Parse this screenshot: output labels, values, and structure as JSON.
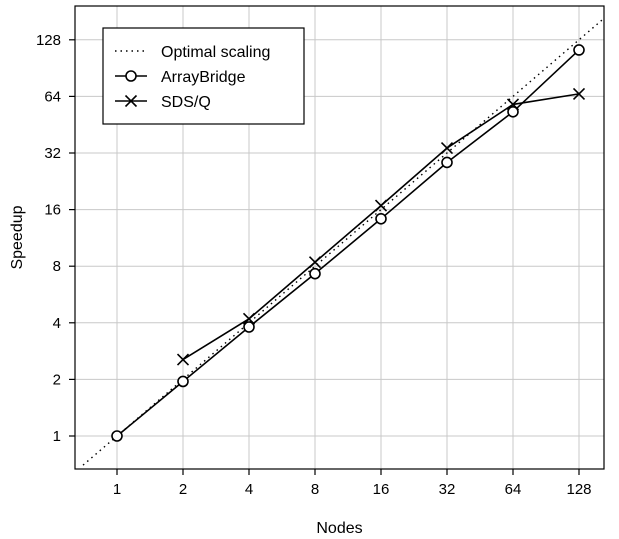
{
  "chart_data": {
    "type": "line",
    "title": "",
    "xlabel": "Nodes",
    "ylabel": "Speedup",
    "x_scale": "log2",
    "y_scale": "log2",
    "x": [
      1,
      2,
      4,
      8,
      16,
      32,
      64,
      128
    ],
    "x_tick_labels": [
      "1",
      "2",
      "4",
      "8",
      "16",
      "32",
      "64",
      "128"
    ],
    "y_tick_labels": [
      "1",
      "2",
      "4",
      "8",
      "16",
      "32",
      "64",
      "128"
    ],
    "grid": true,
    "legend_position": "top-left",
    "series": [
      {
        "name": "Optimal scaling",
        "style": "dotted",
        "marker": "none",
        "x": [
          0.7,
          181
        ],
        "values": [
          0.7,
          181
        ]
      },
      {
        "name": "ArrayBridge",
        "style": "solid",
        "marker": "circle",
        "x": [
          1,
          2,
          4,
          8,
          16,
          32,
          64,
          128
        ],
        "values": [
          1.0,
          1.95,
          3.8,
          7.3,
          14.3,
          28.5,
          53,
          113
        ]
      },
      {
        "name": "SDS/Q",
        "style": "solid",
        "marker": "x",
        "x": [
          2,
          4,
          8,
          16,
          32,
          64,
          128
        ],
        "values": [
          2.55,
          4.2,
          8.4,
          16.8,
          34,
          58,
          66
        ]
      }
    ],
    "colors": {
      "line": "#000000",
      "grid": "#c8c8c8",
      "background": "#ffffff"
    }
  }
}
